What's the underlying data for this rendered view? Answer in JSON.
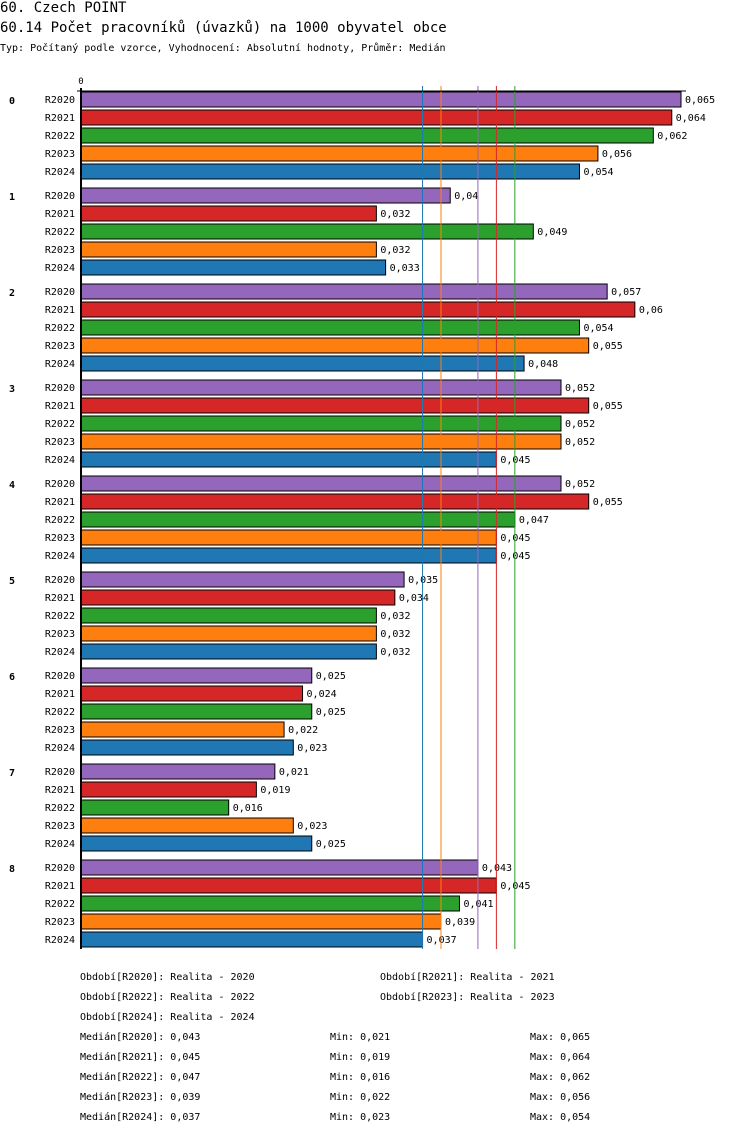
{
  "header": {
    "title": "60. Czech POINT",
    "subtitle": "60.14 Počet pracovníků (úvazků) na 1000 obyvatel obce",
    "meta": "Typ: Počítaný podle vzorce, Vyhodnocení: Absolutní hodnoty, Průměr: Medián"
  },
  "chart_data": {
    "type": "bar",
    "orientation": "horizontal",
    "title": "60.14 Počet pracovníků (úvazků) na 1000 obyvatel obce",
    "xlabel": "",
    "ylabel": "",
    "x_tick_labels": [
      "0"
    ],
    "xlim": [
      0,
      0.065
    ],
    "categories": [
      "0",
      "1",
      "2",
      "3",
      "4",
      "5",
      "6",
      "7",
      "8"
    ],
    "series": [
      {
        "name": "R2020",
        "color": "#9467bd",
        "values": [
          0.065,
          0.04,
          0.057,
          0.052,
          0.052,
          0.035,
          0.025,
          0.021,
          0.043
        ],
        "labels": [
          "0,065",
          "0,04",
          "0,057",
          "0,052",
          "0,052",
          "0,035",
          "0,025",
          "0,021",
          "0,043"
        ]
      },
      {
        "name": "R2021",
        "color": "#d62728",
        "values": [
          0.064,
          0.032,
          0.06,
          0.055,
          0.055,
          0.034,
          0.024,
          0.019,
          0.045
        ],
        "labels": [
          "0,064",
          "0,032",
          "0,06",
          "0,055",
          "0,055",
          "0,034",
          "0,024",
          "0,019",
          "0,045"
        ]
      },
      {
        "name": "R2022",
        "color": "#2ca02c",
        "values": [
          0.062,
          0.049,
          0.054,
          0.052,
          0.047,
          0.032,
          0.025,
          0.016,
          0.041
        ],
        "labels": [
          "0,062",
          "0,049",
          "0,054",
          "0,052",
          "0,047",
          "0,032",
          "0,025",
          "0,016",
          "0,041"
        ]
      },
      {
        "name": "R2023",
        "color": "#ff7f0e",
        "values": [
          0.056,
          0.032,
          0.055,
          0.052,
          0.045,
          0.032,
          0.022,
          0.023,
          0.039
        ],
        "labels": [
          "0,056",
          "0,032",
          "0,055",
          "0,052",
          "0,045",
          "0,032",
          "0,022",
          "0,023",
          "0,039"
        ]
      },
      {
        "name": "R2024",
        "color": "#1f77b4",
        "values": [
          0.054,
          0.033,
          0.048,
          0.045,
          0.045,
          0.032,
          0.023,
          0.025,
          0.037
        ],
        "labels": [
          "0,054",
          "0,033",
          "0,048",
          "0,045",
          "0,045",
          "0,032",
          "0,023",
          "0,025",
          "0,037"
        ]
      }
    ],
    "median_lines": [
      {
        "series": "R2020",
        "value": 0.043,
        "color": "#9467bd"
      },
      {
        "series": "R2021",
        "value": 0.045,
        "color": "#d62728"
      },
      {
        "series": "R2022",
        "value": 0.047,
        "color": "#2ca02c"
      },
      {
        "series": "R2023",
        "value": 0.039,
        "color": "#ff7f0e"
      },
      {
        "series": "R2024",
        "value": 0.037,
        "color": "#1f77b4"
      }
    ],
    "legend_position": "bottom",
    "grid": false
  },
  "legend": {
    "periods": [
      "Období[R2020]: Realita - 2020",
      "Období[R2021]: Realita - 2021",
      "Období[R2022]: Realita - 2022",
      "Období[R2023]: Realita - 2023",
      "Období[R2024]: Realita - 2024"
    ],
    "stats": [
      {
        "median": "Medián[R2020]: 0,043",
        "min": "Min: 0,021",
        "max": "Max: 0,065"
      },
      {
        "median": "Medián[R2021]: 0,045",
        "min": "Min: 0,019",
        "max": "Max: 0,064"
      },
      {
        "median": "Medián[R2022]: 0,047",
        "min": "Min: 0,016",
        "max": "Max: 0,062"
      },
      {
        "median": "Medián[R2023]: 0,039",
        "min": "Min: 0,022",
        "max": "Max: 0,056"
      },
      {
        "median": "Medián[R2024]: 0,037",
        "min": "Min: 0,023",
        "max": "Max: 0,054"
      }
    ]
  }
}
